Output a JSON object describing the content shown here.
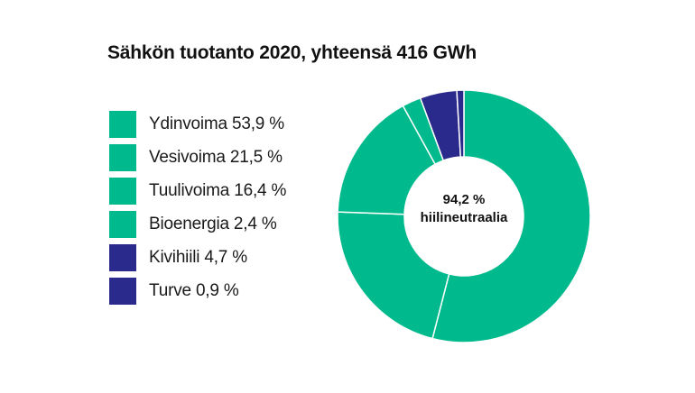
{
  "chart_data": {
    "type": "pie",
    "title": "Sähkön tuotanto 2020, yhteensä 416 GWh",
    "center_text": {
      "line1": "94,2 %",
      "line2": "hiilineutraalia"
    },
    "categories": [
      "Ydinvoima",
      "Vesivoima",
      "Tuulivoima",
      "Bioenergia",
      "Kivihiili",
      "Turve"
    ],
    "values": [
      53.9,
      21.5,
      16.4,
      2.4,
      4.7,
      0.9
    ],
    "legend": [
      {
        "label": "Ydinvoima 53,9 %",
        "color": "#00BA8D"
      },
      {
        "label": "Vesivoima 21,5 %",
        "color": "#00BA8D"
      },
      {
        "label": "Tuulivoima 16,4 %",
        "color": "#00BA8D"
      },
      {
        "label": "Bioenergia 2,4 %",
        "color": "#00BA8D"
      },
      {
        "label": "Kivihiili 4,7 %",
        "color": "#2A2A8C"
      },
      {
        "label": "Turve 0,9 %",
        "color": "#2A2A8C"
      }
    ],
    "colors": [
      "#00BA8D",
      "#00BA8D",
      "#00BA8D",
      "#00BA8D",
      "#2A2A8C",
      "#2A2A8C"
    ],
    "legend_position": "left"
  }
}
